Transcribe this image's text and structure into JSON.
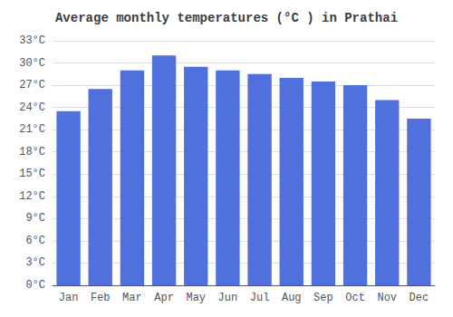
{
  "chart_data": {
    "type": "bar",
    "title": "Average monthly temperatures (°C ) in Prathai",
    "categories": [
      "Jan",
      "Feb",
      "Mar",
      "Apr",
      "May",
      "Jun",
      "Jul",
      "Aug",
      "Sep",
      "Oct",
      "Nov",
      "Dec"
    ],
    "values": [
      23.5,
      26.5,
      29.0,
      31.0,
      29.5,
      29.0,
      28.5,
      28.0,
      27.5,
      27.0,
      25.0,
      22.5
    ],
    "ylim": [
      0,
      33
    ],
    "yticks": [
      {
        "value": 0,
        "label": "0°C"
      },
      {
        "value": 3,
        "label": "3°C"
      },
      {
        "value": 6,
        "label": "6°C"
      },
      {
        "value": 9,
        "label": "9°C"
      },
      {
        "value": 12,
        "label": "12°C"
      },
      {
        "value": 15,
        "label": "15°C"
      },
      {
        "value": 18,
        "label": "18°C"
      },
      {
        "value": 21,
        "label": "21°C"
      },
      {
        "value": 24,
        "label": "24°C"
      },
      {
        "value": 27,
        "label": "27°C"
      },
      {
        "value": 30,
        "label": "30°C"
      },
      {
        "value": 33,
        "label": "33°C"
      }
    ],
    "grid": true
  }
}
